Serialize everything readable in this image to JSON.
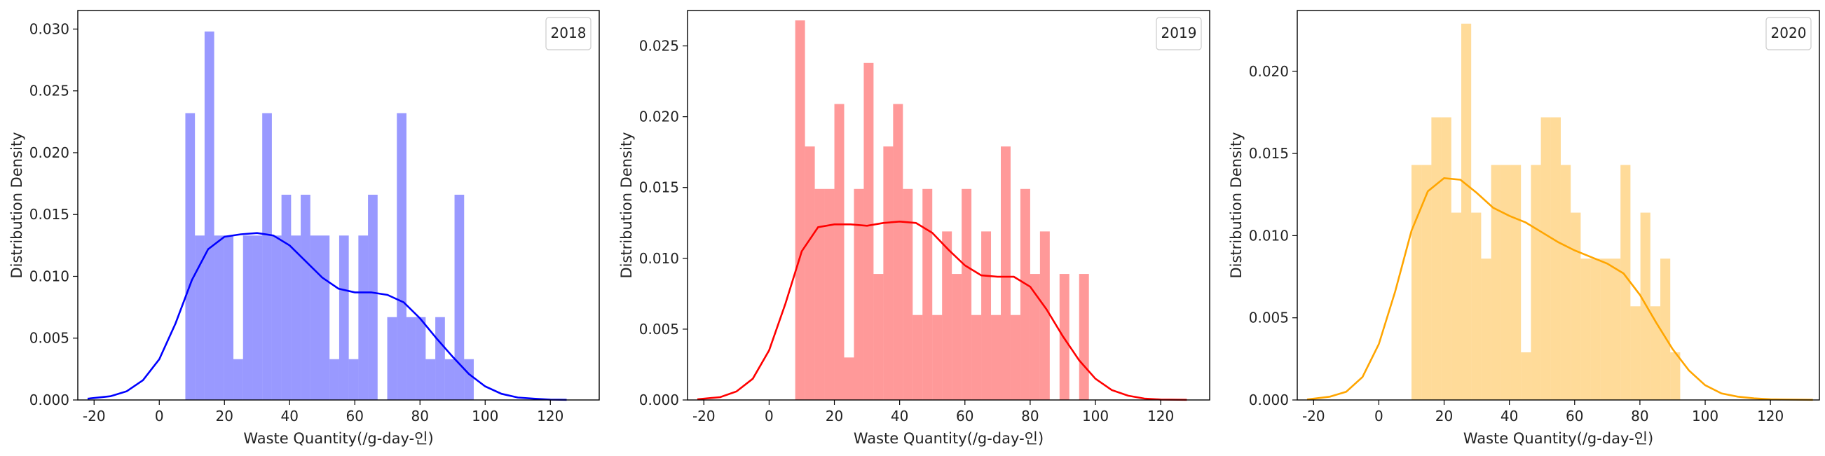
{
  "chart_data": [
    {
      "type": "bar",
      "legend": "2018",
      "legend_position": "upper-right",
      "xlabel": "Waste Quantity(/g-day-인)",
      "ylabel": "Distribution Density",
      "xlim": [
        -25,
        135
      ],
      "ylim": [
        0,
        0.0315
      ],
      "xticks": [
        -20,
        0,
        20,
        40,
        60,
        80,
        100,
        120
      ],
      "yticks": [
        0.0,
        0.005,
        0.01,
        0.015,
        0.02,
        0.025,
        0.03
      ],
      "ytick_labels": [
        "0.000",
        "0.005",
        "0.010",
        "0.015",
        "0.020",
        "0.025",
        "0.030"
      ],
      "color": "#0000ff",
      "hist": {
        "bin_start": 8,
        "bin_width": 2.95,
        "densities": [
          0.0232,
          0.0133,
          0.0298,
          0.0133,
          0.0133,
          0.0033,
          0.0133,
          0.0133,
          0.0232,
          0.0133,
          0.0166,
          0.0133,
          0.0166,
          0.0133,
          0.0133,
          0.0033,
          0.0133,
          0.0033,
          0.0133,
          0.0166,
          0.0,
          0.0067,
          0.0232,
          0.0067,
          0.0067,
          0.0033,
          0.0067,
          0.0033,
          0.0166,
          0.0033
        ]
      },
      "kde": {
        "x": [
          -22,
          -15,
          -10,
          -5,
          0,
          5,
          10,
          15,
          20,
          25,
          30,
          35,
          40,
          45,
          50,
          55,
          60,
          65,
          70,
          75,
          80,
          85,
          90,
          95,
          100,
          105,
          110,
          115,
          120,
          125
        ],
        "y": [
          0.0001,
          0.0003,
          0.0007,
          0.0016,
          0.0033,
          0.0062,
          0.0097,
          0.0122,
          0.0132,
          0.0134,
          0.0135,
          0.0133,
          0.0125,
          0.0112,
          0.0099,
          0.009,
          0.0087,
          0.0087,
          0.0085,
          0.0079,
          0.0066,
          0.005,
          0.0035,
          0.0021,
          0.0011,
          0.0005,
          0.0002,
          0.0001,
          3e-05,
          1e-05
        ]
      }
    },
    {
      "type": "bar",
      "legend": "2019",
      "legend_position": "upper-right",
      "xlabel": "Waste Quantity(/g-day-인)",
      "ylabel": "Distribution Density",
      "xlim": [
        -25,
        135
      ],
      "ylim": [
        0,
        0.0275
      ],
      "xticks": [
        -20,
        0,
        20,
        40,
        60,
        80,
        100,
        120
      ],
      "yticks": [
        0.0,
        0.005,
        0.01,
        0.015,
        0.02,
        0.025
      ],
      "ytick_labels": [
        "0.000",
        "0.005",
        "0.010",
        "0.015",
        "0.020",
        "0.025"
      ],
      "color": "#ff0000",
      "hist": {
        "bin_start": 8,
        "bin_width": 3.0,
        "densities": [
          0.0268,
          0.0179,
          0.0149,
          0.0149,
          0.0209,
          0.003,
          0.0149,
          0.0238,
          0.0089,
          0.0179,
          0.0209,
          0.0149,
          0.006,
          0.0149,
          0.006,
          0.0119,
          0.0089,
          0.0149,
          0.006,
          0.0119,
          0.006,
          0.0179,
          0.006,
          0.0149,
          0.0089,
          0.0119,
          0.0,
          0.0089,
          0.0,
          0.0089
        ]
      },
      "kde": {
        "x": [
          -22,
          -15,
          -10,
          -5,
          0,
          5,
          10,
          15,
          20,
          25,
          30,
          35,
          40,
          45,
          50,
          55,
          60,
          65,
          70,
          75,
          80,
          85,
          90,
          95,
          100,
          105,
          110,
          115,
          120,
          128
        ],
        "y": [
          5e-05,
          0.0002,
          0.0006,
          0.0015,
          0.0035,
          0.0068,
          0.0105,
          0.0122,
          0.0124,
          0.0124,
          0.0123,
          0.0125,
          0.0126,
          0.0125,
          0.0118,
          0.0106,
          0.0095,
          0.0088,
          0.0087,
          0.0087,
          0.008,
          0.0064,
          0.0045,
          0.0028,
          0.0015,
          0.0007,
          0.0003,
          0.0001,
          3e-05,
          1e-05
        ]
      }
    },
    {
      "type": "bar",
      "legend": "2020",
      "legend_position": "upper-right",
      "xlabel": "Waste Quantity(/g-day-인)",
      "ylabel": "Distribution Density",
      "xlim": [
        -25,
        135
      ],
      "ylim": [
        0,
        0.0237
      ],
      "xticks": [
        -20,
        0,
        20,
        40,
        60,
        80,
        100,
        120
      ],
      "yticks": [
        0.0,
        0.005,
        0.01,
        0.015,
        0.02
      ],
      "ytick_labels": [
        "0.000",
        "0.005",
        "0.010",
        "0.015",
        "0.020"
      ],
      "color": "#ffa500",
      "hist": {
        "bin_start": 10,
        "bin_width": 3.05,
        "densities": [
          0.0143,
          0.0143,
          0.0172,
          0.0172,
          0.0114,
          0.0229,
          0.0114,
          0.0086,
          0.0143,
          0.0143,
          0.0143,
          0.0029,
          0.0143,
          0.0172,
          0.0172,
          0.0143,
          0.0114,
          0.0086,
          0.0086,
          0.0086,
          0.0086,
          0.0143,
          0.0057,
          0.0114,
          0.0057,
          0.0086,
          0.0029
        ]
      },
      "kde": {
        "x": [
          -22,
          -15,
          -10,
          -5,
          0,
          5,
          10,
          15,
          20,
          25,
          30,
          35,
          40,
          45,
          50,
          55,
          60,
          65,
          70,
          75,
          80,
          85,
          90,
          95,
          100,
          105,
          110,
          115,
          120,
          133
        ],
        "y": [
          3e-05,
          0.0002,
          0.0005,
          0.0014,
          0.0034,
          0.0066,
          0.0103,
          0.0127,
          0.0135,
          0.0134,
          0.0126,
          0.0117,
          0.0112,
          0.0108,
          0.0102,
          0.0096,
          0.0091,
          0.0087,
          0.0083,
          0.0077,
          0.0064,
          0.0047,
          0.0031,
          0.0018,
          0.0009,
          0.0004,
          0.0002,
          0.0001,
          4e-05,
          1e-05
        ]
      }
    }
  ]
}
